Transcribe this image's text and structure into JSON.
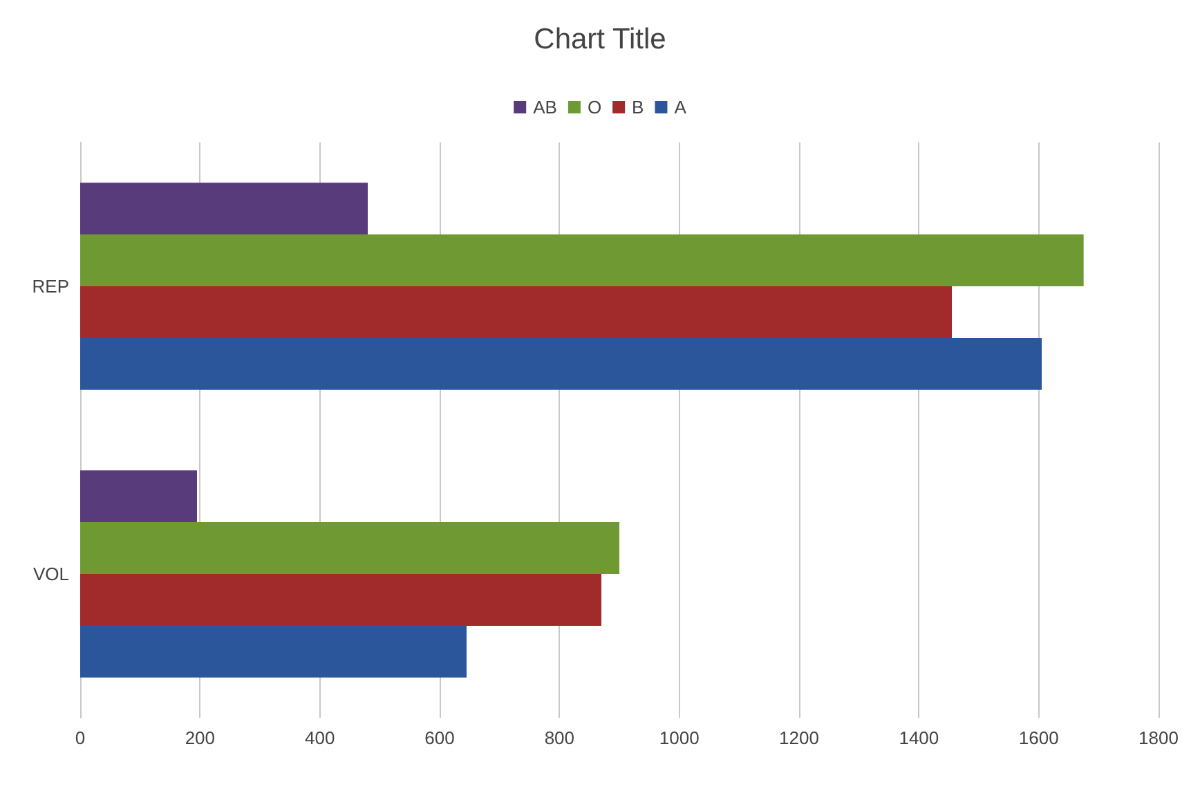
{
  "chart_data": {
    "type": "bar",
    "orientation": "horizontal",
    "title": "Chart Title",
    "categories": [
      "REP",
      "VOL"
    ],
    "series": [
      {
        "name": "AB",
        "color": "#573b7a",
        "values": [
          480,
          195
        ]
      },
      {
        "name": "O",
        "color": "#6f9a33",
        "values": [
          1675,
          900
        ]
      },
      {
        "name": "B",
        "color": "#a12b2b",
        "values": [
          1455,
          870
        ]
      },
      {
        "name": "A",
        "color": "#2c569b",
        "values": [
          1605,
          645
        ]
      }
    ],
    "xlim": [
      0,
      1800
    ],
    "xticks": [
      0,
      200,
      400,
      600,
      800,
      1000,
      1200,
      1400,
      1600,
      1800
    ],
    "grid": "x",
    "legend": "top"
  }
}
